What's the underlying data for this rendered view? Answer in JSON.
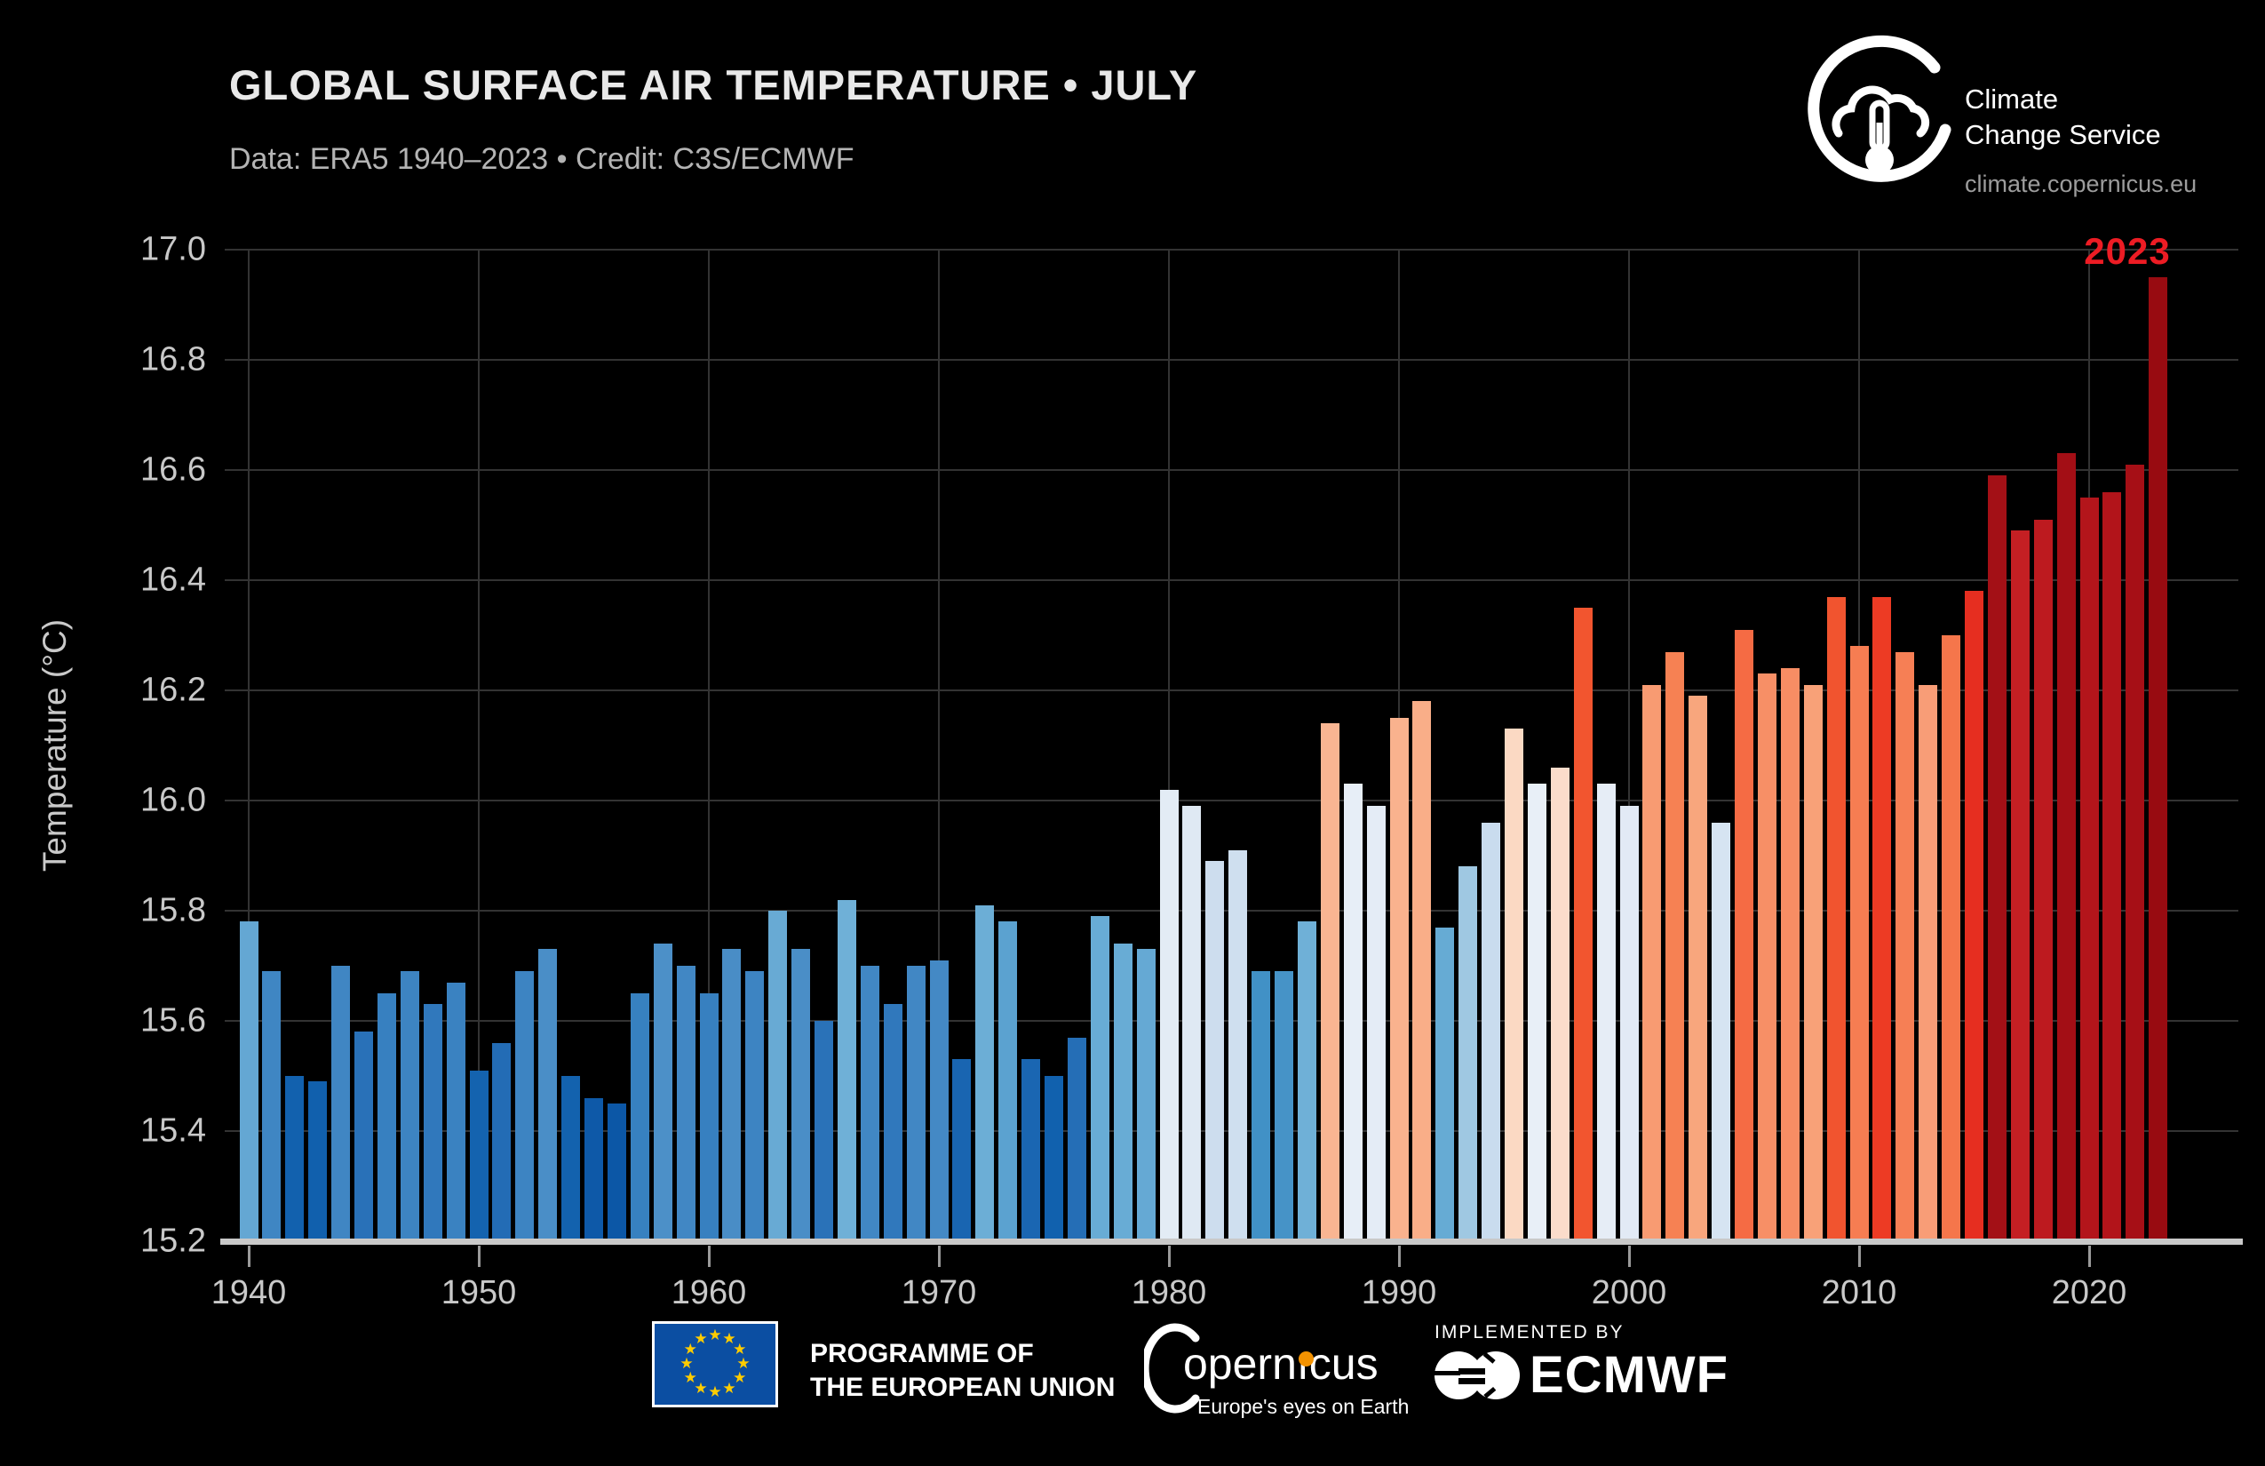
{
  "header": {
    "title": "GLOBAL SURFACE AIR TEMPERATURE • JULY",
    "subtitle": "Data: ERA5 1940–2023  •  Credit: C3S/ECMWF"
  },
  "c3s_branding": {
    "name_line1": "Climate",
    "name_line2": "Change Service",
    "url": "climate.copernicus.eu"
  },
  "chart_data": {
    "type": "bar",
    "title": "GLOBAL SURFACE AIR TEMPERATURE • JULY",
    "xlabel": "",
    "ylabel": "Temperature (°C)",
    "ylim": [
      15.2,
      17.0
    ],
    "yticks": [
      15.2,
      15.4,
      15.6,
      15.8,
      16.0,
      16.2,
      16.4,
      16.6,
      16.8,
      17.0
    ],
    "xticks": [
      1940,
      1950,
      1960,
      1970,
      1980,
      1990,
      2000,
      2010,
      2020
    ],
    "grid": true,
    "legend_position": "none",
    "annotation": {
      "text": "2023",
      "color": "#ed1c24"
    },
    "x": [
      1940,
      1941,
      1942,
      1943,
      1944,
      1945,
      1946,
      1947,
      1948,
      1949,
      1950,
      1951,
      1952,
      1953,
      1954,
      1955,
      1956,
      1957,
      1958,
      1959,
      1960,
      1961,
      1962,
      1963,
      1964,
      1965,
      1966,
      1967,
      1968,
      1969,
      1970,
      1971,
      1972,
      1973,
      1974,
      1975,
      1976,
      1977,
      1978,
      1979,
      1980,
      1981,
      1982,
      1983,
      1984,
      1985,
      1986,
      1987,
      1988,
      1989,
      1990,
      1991,
      1992,
      1993,
      1994,
      1995,
      1996,
      1997,
      1998,
      1999,
      2000,
      2001,
      2002,
      2003,
      2004,
      2005,
      2006,
      2007,
      2008,
      2009,
      2010,
      2011,
      2012,
      2013,
      2014,
      2015,
      2016,
      2017,
      2018,
      2019,
      2020,
      2021,
      2022,
      2023
    ],
    "values": [
      15.78,
      15.69,
      15.5,
      15.49,
      15.7,
      15.58,
      15.65,
      15.69,
      15.63,
      15.67,
      15.51,
      15.56,
      15.69,
      15.73,
      15.5,
      15.46,
      15.45,
      15.65,
      15.74,
      15.7,
      15.65,
      15.73,
      15.69,
      15.8,
      15.73,
      15.6,
      15.82,
      15.7,
      15.63,
      15.7,
      15.71,
      15.53,
      15.81,
      15.78,
      15.53,
      15.5,
      15.57,
      15.79,
      15.74,
      15.73,
      16.02,
      15.99,
      15.89,
      15.91,
      15.69,
      15.69,
      15.78,
      16.14,
      16.03,
      15.99,
      16.15,
      16.18,
      15.77,
      15.88,
      15.96,
      16.13,
      16.03,
      16.06,
      16.35,
      16.03,
      15.99,
      16.21,
      16.27,
      16.19,
      15.96,
      16.31,
      16.23,
      16.24,
      16.21,
      16.37,
      16.28,
      16.37,
      16.27,
      16.21,
      16.3,
      16.38,
      16.59,
      16.49,
      16.51,
      16.63,
      16.55,
      16.56,
      16.61,
      16.95
    ],
    "bar_colors": [
      "#64a7d3",
      "#3f86c3",
      "#1261ae",
      "#1160ad",
      "#4086c3",
      "#2971b8",
      "#3780c0",
      "#3d84c2",
      "#3078bc",
      "#3a82c1",
      "#1463af",
      "#236cb5",
      "#3d84c2",
      "#4a8ec7",
      "#1362ae",
      "#0e59a8",
      "#0c57a6",
      "#3781c0",
      "#4c90c8",
      "#4187c4",
      "#3780c0",
      "#498dc6",
      "#3d84c2",
      "#68aad4",
      "#4a8ec7",
      "#2a72b8",
      "#6fb0d7",
      "#4187c4",
      "#3078bc",
      "#4187c4",
      "#4489c5",
      "#1965b1",
      "#6caed6",
      "#5ba2d0",
      "#1a66b2",
      "#1161ae",
      "#256eb6",
      "#68acd5",
      "#68acd5",
      "#65a9d4",
      "#e3ecf5",
      "#dfe9f3",
      "#cdddee",
      "#cfdfef",
      "#4191c6",
      "#4693c7",
      "#6fb0d7",
      "#f9b592",
      "#e7eef7",
      "#e4ecf6",
      "#f9b28e",
      "#f9ae88",
      "#66abd4",
      "#9fc8e2",
      "#c9dcee",
      "#fbd9c3",
      "#e8eff7",
      "#fbdccb",
      "#f2552f",
      "#e6edf6",
      "#e2eaf5",
      "#f89b72",
      "#f68153",
      "#f8a67d",
      "#d6e4f2",
      "#f56b44",
      "#f78f66",
      "#f78d64",
      "#f8a178",
      "#f1542f",
      "#f67d52",
      "#ed3b24",
      "#f67f55",
      "#f89d77",
      "#f5764b",
      "#e62e20",
      "#a31016",
      "#c41f23",
      "#bd1a1f",
      "#a30e15",
      "#b3151b",
      "#b2141a",
      "#a60f16",
      "#980b11"
    ]
  },
  "colors": {
    "background": "#000000",
    "grid": "#333333",
    "baseline": "#c9c9c9",
    "tick": "#9a9a9a",
    "axis_text": "#c9c9c9",
    "title_text": "#e9e9e9",
    "subtitle_text": "#b4b4b4",
    "annotation_red": "#ed1c24",
    "eu_blue": "#0b4ea2",
    "eu_star_yellow": "#ffcc00",
    "copernicus_orange": "#f39200"
  },
  "footer": {
    "eu_label_line1": "PROGRAMME OF",
    "eu_label_line2": "THE EUROPEAN UNION",
    "copernicus_name": "opernıcus",
    "copernicus_tagline": "Europe's eyes on Earth",
    "implemented_by": "IMPLEMENTED BY",
    "ecmwf_name": "ECMWF"
  }
}
